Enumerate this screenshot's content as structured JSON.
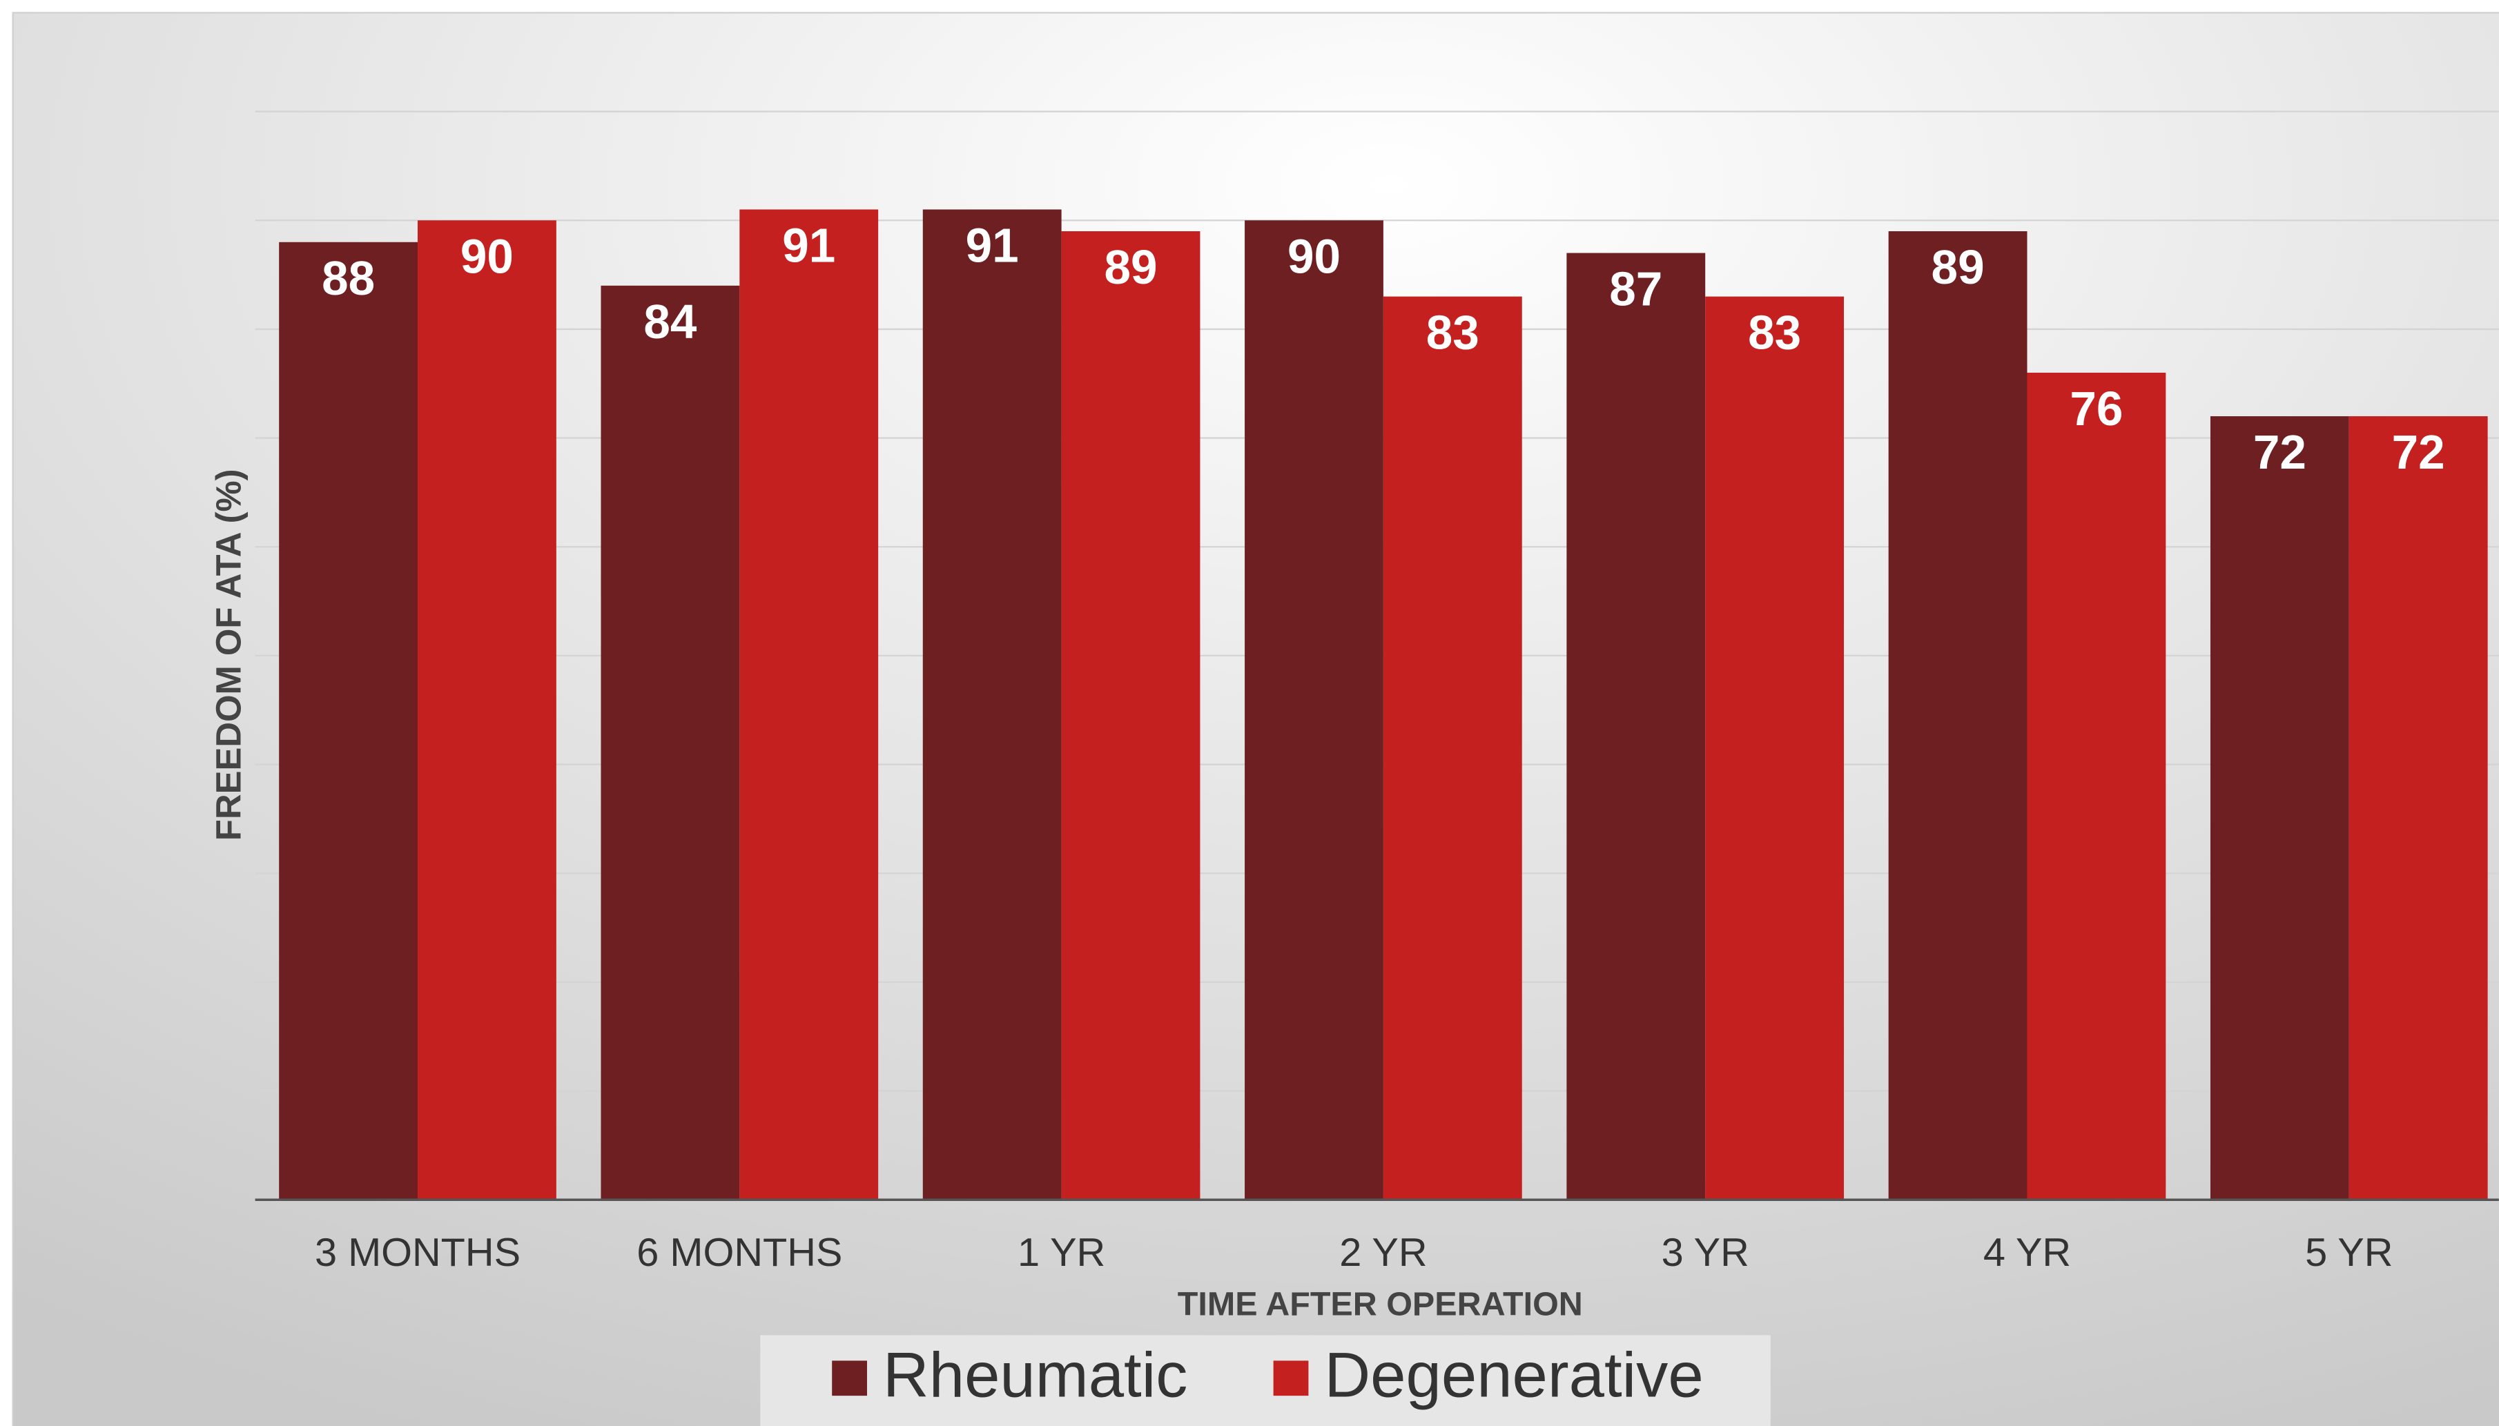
{
  "chart_data": {
    "type": "bar",
    "categories": [
      "3 MONTHS",
      "6 MONTHS",
      "1 YR",
      "2 YR",
      "3 YR",
      "4 YR",
      "5 YR"
    ],
    "series": [
      {
        "name": "Rheumatic",
        "color": "#6e1f22",
        "values": [
          88,
          84,
          91,
          90,
          87,
          89,
          72
        ]
      },
      {
        "name": "Degenerative",
        "color": "#c42020",
        "values": [
          90,
          91,
          89,
          83,
          83,
          76,
          72
        ]
      }
    ],
    "xlabel": "TIME AFTER OPERATION",
    "ylabel": "FREEDOM OF ATA (%)",
    "ylim": [
      0,
      100
    ],
    "yticks": [
      0,
      10,
      20,
      30,
      40,
      50,
      60,
      70,
      80,
      90,
      100
    ],
    "grid": true,
    "legend": "bottom"
  }
}
